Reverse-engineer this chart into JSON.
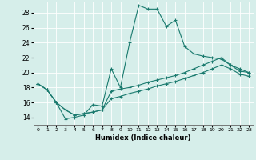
{
  "xlabel": "Humidex (Indice chaleur)",
  "xlim": [
    -0.5,
    23.5
  ],
  "ylim": [
    13.0,
    29.5
  ],
  "xticks": [
    0,
    1,
    2,
    3,
    4,
    5,
    6,
    7,
    8,
    9,
    10,
    11,
    12,
    13,
    14,
    15,
    16,
    17,
    18,
    19,
    20,
    21,
    22,
    23
  ],
  "yticks": [
    14,
    16,
    18,
    20,
    22,
    24,
    26,
    28
  ],
  "background_color": "#d6eeea",
  "line_color": "#1a7a6e",
  "grid_color": "#ffffff",
  "line1_x": [
    0,
    1,
    2,
    3,
    4,
    5,
    6,
    7,
    8,
    9,
    10,
    11,
    12,
    13,
    14,
    15,
    16,
    17,
    18,
    19,
    20,
    21,
    22,
    23
  ],
  "line1_y": [
    18.5,
    17.7,
    16.0,
    13.8,
    14.0,
    14.3,
    15.7,
    15.5,
    20.5,
    18.0,
    24.0,
    29.0,
    28.5,
    28.5,
    26.2,
    27.0,
    23.5,
    22.5,
    22.2,
    22.0,
    21.8,
    21.0,
    20.5,
    20.0
  ],
  "line2_x": [
    0,
    1,
    2,
    3,
    4,
    5,
    6,
    7,
    8,
    9,
    10,
    11,
    12,
    13,
    14,
    15,
    16,
    17,
    18,
    19,
    20,
    21,
    22,
    23
  ],
  "line2_y": [
    18.5,
    17.7,
    16.0,
    15.0,
    14.3,
    14.5,
    14.7,
    15.0,
    17.5,
    17.8,
    18.0,
    18.3,
    18.7,
    19.0,
    19.3,
    19.6,
    20.0,
    20.5,
    21.0,
    21.5,
    22.0,
    21.0,
    20.2,
    20.0
  ],
  "line3_x": [
    0,
    1,
    2,
    3,
    4,
    5,
    6,
    7,
    8,
    9,
    10,
    11,
    12,
    13,
    14,
    15,
    16,
    17,
    18,
    19,
    20,
    21,
    22,
    23
  ],
  "line3_y": [
    18.5,
    17.7,
    16.0,
    15.0,
    14.3,
    14.5,
    14.7,
    15.0,
    16.5,
    16.8,
    17.2,
    17.5,
    17.8,
    18.2,
    18.5,
    18.8,
    19.2,
    19.6,
    20.0,
    20.5,
    21.0,
    20.5,
    19.8,
    19.5
  ]
}
